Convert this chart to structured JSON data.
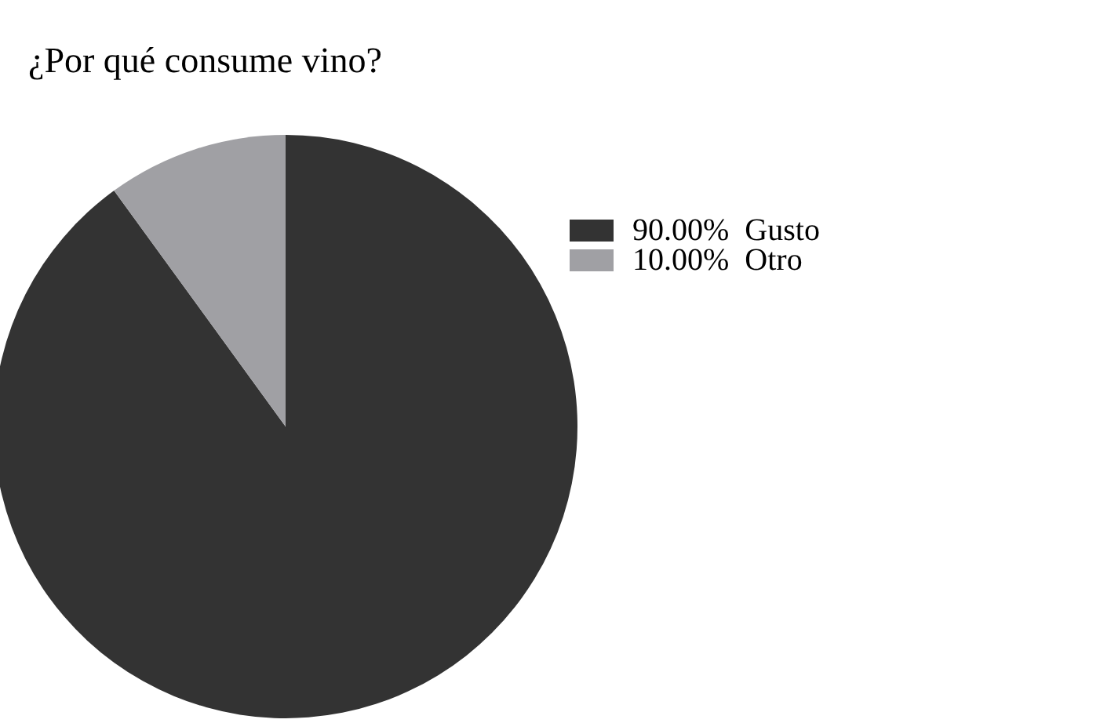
{
  "chart_data": {
    "type": "pie",
    "title": "¿Por qué consume vino?",
    "categories": [
      "Gusto",
      "Otro"
    ],
    "values": [
      90,
      10
    ],
    "colors": [
      "#333333",
      "#a0a0a4"
    ],
    "value_labels": [
      "90.00%",
      "10.00%"
    ],
    "legend": "right"
  }
}
